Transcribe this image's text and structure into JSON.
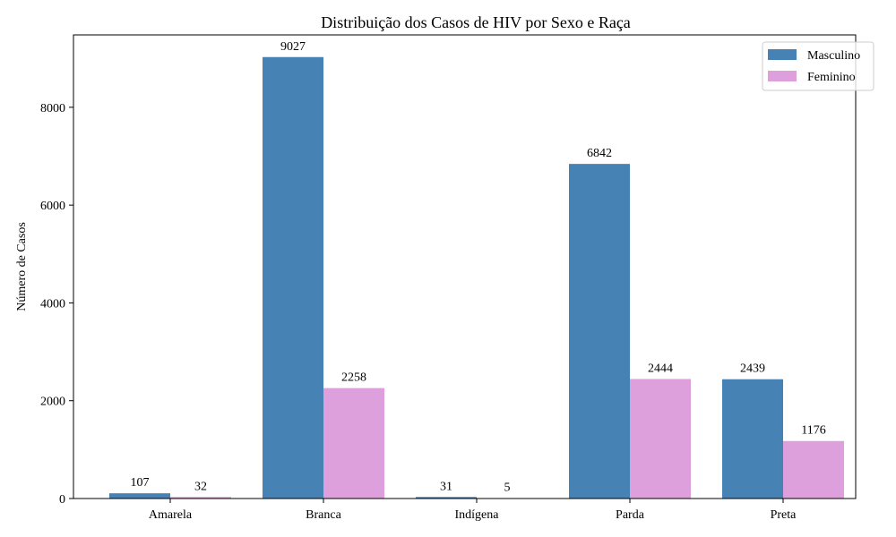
{
  "chart_data": {
    "type": "bar",
    "title": "Distribuição dos Casos de HIV por Sexo e Raça",
    "xlabel": "",
    "ylabel": "Número de Casos",
    "categories": [
      "Amarela",
      "Branca",
      "Indígena",
      "Parda",
      "Preta"
    ],
    "series": [
      {
        "name": "Masculino",
        "values": [
          107,
          9027,
          31,
          6842,
          2439
        ],
        "color": "#4682b4"
      },
      {
        "name": "Feminino",
        "values": [
          32,
          2258,
          5,
          2444,
          1176
        ],
        "color": "#dda0dd"
      }
    ],
    "ylim": [
      0,
      9480
    ],
    "yticks": [
      0,
      2000,
      4000,
      6000,
      8000
    ],
    "legend": "top-right",
    "grid": false
  }
}
